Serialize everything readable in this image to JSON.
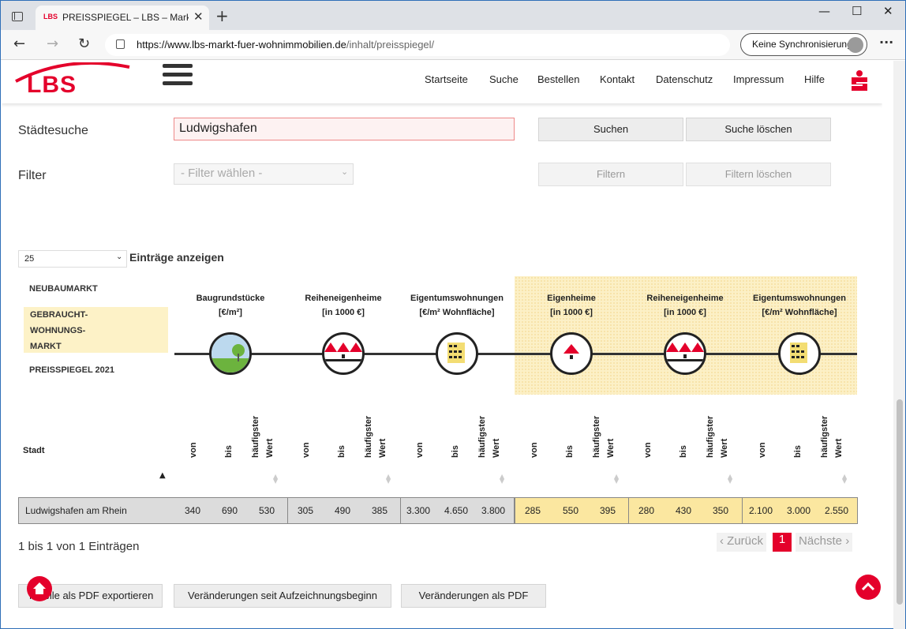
{
  "browser": {
    "tab_title": "PREISSPIEGEL – LBS – Markt für W",
    "tab_favicon": "LBS",
    "url_main": "https://www.lbs-markt-fuer-wohnimmobilien.de",
    "url_path": "/inhalt/preisspiegel/",
    "sync_label": "Keine Synchronisierung"
  },
  "site": {
    "logo": "LBS",
    "nav": [
      "Startseite",
      "Suche",
      "Bestellen",
      "Kontakt",
      "Datenschutz",
      "Impressum",
      "Hilfe"
    ]
  },
  "search": {
    "label": "Städtesuche",
    "value": "Ludwigshafen",
    "search_button": "Suchen",
    "clear_button": "Suche löschen"
  },
  "filter": {
    "label": "Filter",
    "placeholder": "- Filter wählen -",
    "filter_button": "Filtern",
    "clear_button": "Filtern löschen"
  },
  "entries": {
    "selected": "25",
    "label": "Einträge anzeigen"
  },
  "sidenav": {
    "neubau": "NEUBAUMARKT",
    "gebraucht_line1": "GEBRAUCHT-",
    "gebraucht_line2": "WOHNUNGS-",
    "gebraucht_line3": "MARKT",
    "preisspiegel": "PREISSPIEGEL 2021"
  },
  "categories": [
    {
      "title": "Baugrundstücke",
      "unit": "[€/m²]",
      "icon": "tree-icon"
    },
    {
      "title": "Reiheneigenheime",
      "unit": "[in 1000 €]",
      "icon": "row-houses-icon"
    },
    {
      "title": "Eigentumswohnungen",
      "unit": "[€/m² Wohnfläche]",
      "icon": "apartment-icon"
    },
    {
      "title": "Eigenheime",
      "unit": "[in 1000 €]",
      "icon": "house-icon"
    },
    {
      "title": "Reiheneigenheime",
      "unit": "[in 1000 €]",
      "icon": "row-houses-icon"
    },
    {
      "title": "Eigentumswohnungen",
      "unit": "[€/m² Wohnfläche]",
      "icon": "apartment-icon"
    }
  ],
  "table": {
    "stadt_header": "Stadt",
    "col_von": "von",
    "col_bis": "bis",
    "col_hf1": "häufigster",
    "col_hf2": "Wert",
    "row": {
      "stadt": "Ludwigshafen am Rhein",
      "values": [
        "340",
        "690",
        "530",
        "305",
        "490",
        "385",
        "3.300",
        "4.650",
        "3.800",
        "285",
        "550",
        "395",
        "280",
        "430",
        "350",
        "2.100",
        "3.000",
        "2.550"
      ]
    }
  },
  "info": "1 bis 1 von 1 Einträgen",
  "pager": {
    "prev": "‹ Zurück",
    "current": "1",
    "next": "Nächste ›"
  },
  "bottom_buttons": [
    "Tabelle als PDF exportieren",
    "Veränderungen seit Aufzeichnungsbeginn",
    "Veränderungen als PDF"
  ],
  "colors": {
    "brand_red": "#e4002b",
    "highlight_yellow": "#fcf0c6",
    "row_yellow": "#fbe7a0"
  }
}
